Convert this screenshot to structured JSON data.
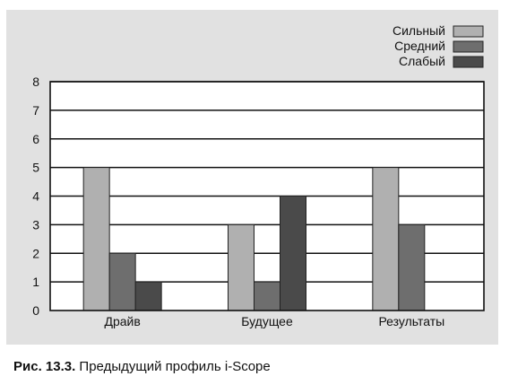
{
  "caption": {
    "label": "Рис. 13.3.",
    "text": " Предыдущий профиль i-Scope"
  },
  "chart_data": {
    "type": "bar",
    "title": "",
    "xlabel": "",
    "ylabel": "",
    "categories": [
      "Драйв",
      "Будущее",
      "Результаты"
    ],
    "series": [
      {
        "name": "Сильный",
        "values": [
          5,
          3,
          5
        ],
        "color": "#b0b0b0"
      },
      {
        "name": "Средний",
        "values": [
          2,
          1,
          3
        ],
        "color": "#6e6e6e"
      },
      {
        "name": "Слабый",
        "values": [
          1,
          4,
          0
        ],
        "color": "#4a4a4a"
      }
    ],
    "ylim": [
      0,
      8
    ],
    "yticks": [
      0,
      1,
      2,
      3,
      4,
      5,
      6,
      7,
      8
    ],
    "grid": true,
    "legend_position": "top-right",
    "plot_background": "#ffffff",
    "panel_background": "#e1e1e1"
  }
}
